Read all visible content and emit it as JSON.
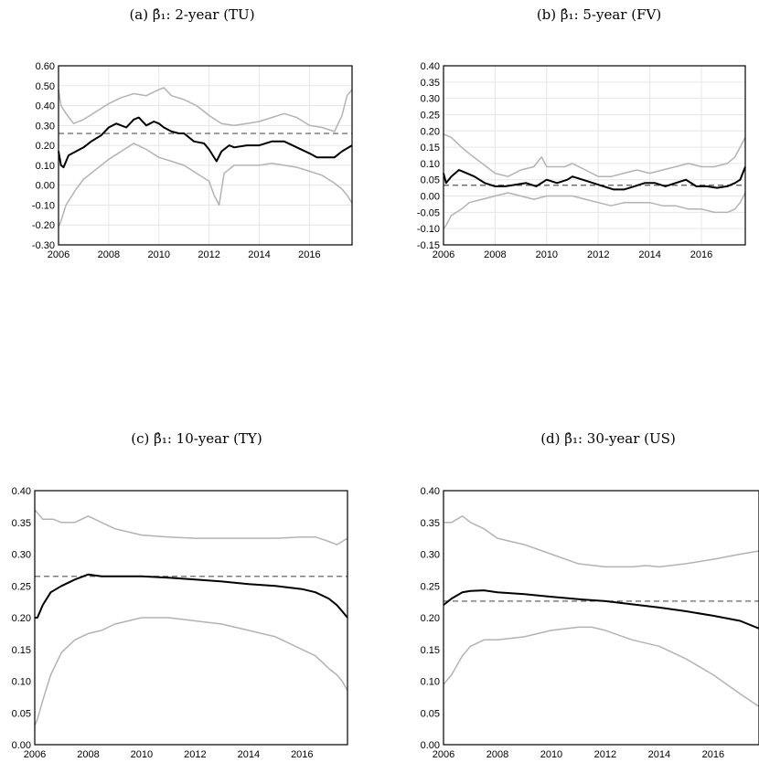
{
  "chart_data": [
    {
      "type": "line",
      "title": "(a) β̂₁: 2-year (TU)",
      "xlabel": "",
      "ylabel": "",
      "xlim": [
        2006,
        2017.7
      ],
      "ylim": [
        -0.3,
        0.6
      ],
      "xticks": [
        "2006",
        "2008",
        "2010",
        "2012",
        "2014",
        "2016"
      ],
      "yticks": [
        "-0.30",
        "-0.20",
        "-0.10",
        "0.00",
        "0.10",
        "0.20",
        "0.30",
        "0.40",
        "0.50",
        "0.60"
      ],
      "grid": true,
      "reference_line": 0.26,
      "series": [
        {
          "role": "upper",
          "color": "#b3b3b3",
          "x": [
            2006,
            2006.1,
            2006.3,
            2006.6,
            2007,
            2007.5,
            2008,
            2008.5,
            2009,
            2009.5,
            2010,
            2010.2,
            2010.5,
            2011,
            2011.5,
            2012,
            2012.5,
            2013,
            2013.5,
            2014,
            2014.5,
            2015,
            2015.5,
            2016,
            2016.5,
            2017,
            2017.3,
            2017.5,
            2017.7
          ],
          "y": [
            0.48,
            0.4,
            0.36,
            0.31,
            0.33,
            0.37,
            0.41,
            0.44,
            0.46,
            0.45,
            0.48,
            0.49,
            0.45,
            0.43,
            0.4,
            0.35,
            0.31,
            0.3,
            0.31,
            0.32,
            0.34,
            0.36,
            0.34,
            0.3,
            0.29,
            0.27,
            0.35,
            0.45,
            0.48
          ]
        },
        {
          "role": "estimate",
          "color": "#000000",
          "x": [
            2006,
            2006.1,
            2006.2,
            2006.4,
            2006.7,
            2007,
            2007.3,
            2007.7,
            2008,
            2008.3,
            2008.7,
            2009,
            2009.2,
            2009.5,
            2009.8,
            2010,
            2010.2,
            2010.5,
            2010.8,
            2011,
            2011.4,
            2011.8,
            2012,
            2012.3,
            2012.5,
            2012.8,
            2013,
            2013.5,
            2014,
            2014.5,
            2015,
            2015.5,
            2016,
            2016.3,
            2016.7,
            2017,
            2017.3,
            2017.7
          ],
          "y": [
            0.17,
            0.1,
            0.09,
            0.15,
            0.17,
            0.19,
            0.22,
            0.25,
            0.29,
            0.31,
            0.29,
            0.33,
            0.34,
            0.3,
            0.32,
            0.31,
            0.29,
            0.27,
            0.26,
            0.26,
            0.22,
            0.21,
            0.18,
            0.12,
            0.17,
            0.2,
            0.19,
            0.2,
            0.2,
            0.22,
            0.22,
            0.19,
            0.16,
            0.14,
            0.14,
            0.14,
            0.17,
            0.2
          ]
        },
        {
          "role": "lower",
          "color": "#b3b3b3",
          "x": [
            2006,
            2006.1,
            2006.3,
            2006.7,
            2007,
            2007.5,
            2008,
            2008.5,
            2009,
            2009.5,
            2010,
            2010.5,
            2011,
            2011.5,
            2012,
            2012.2,
            2012.4,
            2012.6,
            2012.8,
            2013,
            2013.5,
            2014,
            2014.5,
            2015,
            2015.5,
            2016,
            2016.5,
            2017,
            2017.3,
            2017.5,
            2017.7
          ],
          "y": [
            -0.21,
            -0.18,
            -0.1,
            -0.02,
            0.03,
            0.08,
            0.13,
            0.17,
            0.21,
            0.18,
            0.14,
            0.12,
            0.1,
            0.06,
            0.02,
            -0.05,
            -0.1,
            0.06,
            0.08,
            0.1,
            0.1,
            0.1,
            0.11,
            0.1,
            0.09,
            0.07,
            0.05,
            0.01,
            -0.02,
            -0.05,
            -0.09
          ]
        }
      ]
    },
    {
      "type": "line",
      "title": "(b) β̂₁: 5-year (FV)",
      "xlabel": "",
      "ylabel": "",
      "xlim": [
        2006,
        2017.7
      ],
      "ylim": [
        -0.15,
        0.4
      ],
      "xticks": [
        "2006",
        "2008",
        "2010",
        "2012",
        "2014",
        "2016"
      ],
      "yticks": [
        "-0.15",
        "-0.10",
        "-0.05",
        "0.00",
        "0.05",
        "0.10",
        "0.15",
        "0.20",
        "0.25",
        "0.30",
        "0.35",
        "0.40"
      ],
      "grid": true,
      "reference_line": 0.033,
      "series": [
        {
          "role": "upper",
          "color": "#b3b3b3",
          "x": [
            2006,
            2006.3,
            2006.7,
            2007,
            2007.5,
            2008,
            2008.5,
            2009,
            2009.5,
            2009.8,
            2010,
            2010.3,
            2010.7,
            2011,
            2011.5,
            2012,
            2012.5,
            2013,
            2013.5,
            2014,
            2014.5,
            2015,
            2015.5,
            2016,
            2016.5,
            2017,
            2017.3,
            2017.5,
            2017.7
          ],
          "y": [
            0.19,
            0.18,
            0.15,
            0.13,
            0.1,
            0.07,
            0.06,
            0.08,
            0.09,
            0.12,
            0.09,
            0.09,
            0.09,
            0.1,
            0.08,
            0.06,
            0.06,
            0.07,
            0.08,
            0.07,
            0.08,
            0.09,
            0.1,
            0.09,
            0.09,
            0.1,
            0.12,
            0.15,
            0.18
          ]
        },
        {
          "role": "estimate",
          "color": "#000000",
          "x": [
            2006,
            2006.1,
            2006.3,
            2006.6,
            2006.9,
            2007.2,
            2007.6,
            2008,
            2008.4,
            2008.8,
            2009.2,
            2009.6,
            2010,
            2010.4,
            2010.8,
            2011,
            2011.4,
            2011.8,
            2012.2,
            2012.6,
            2013,
            2013.4,
            2013.8,
            2014.2,
            2014.6,
            2015,
            2015.4,
            2015.8,
            2016.2,
            2016.6,
            2017,
            2017.3,
            2017.5,
            2017.7
          ],
          "y": [
            0.07,
            0.04,
            0.06,
            0.08,
            0.07,
            0.06,
            0.04,
            0.03,
            0.03,
            0.035,
            0.04,
            0.03,
            0.05,
            0.04,
            0.05,
            0.06,
            0.05,
            0.04,
            0.03,
            0.02,
            0.02,
            0.03,
            0.04,
            0.04,
            0.03,
            0.04,
            0.05,
            0.03,
            0.03,
            0.025,
            0.03,
            0.04,
            0.05,
            0.09
          ]
        },
        {
          "role": "lower",
          "color": "#b3b3b3",
          "x": [
            2006,
            2006.1,
            2006.3,
            2006.7,
            2007,
            2007.5,
            2008,
            2008.5,
            2009,
            2009.5,
            2010,
            2010.5,
            2011,
            2011.5,
            2012,
            2012.5,
            2013,
            2013.5,
            2014,
            2014.5,
            2015,
            2015.5,
            2016,
            2016.5,
            2017,
            2017.3,
            2017.5,
            2017.7
          ],
          "y": [
            -0.1,
            -0.09,
            -0.06,
            -0.04,
            -0.02,
            -0.01,
            0.0,
            0.01,
            0.0,
            -0.01,
            0.0,
            0.0,
            0.0,
            -0.01,
            -0.02,
            -0.03,
            -0.02,
            -0.02,
            -0.02,
            -0.03,
            -0.03,
            -0.04,
            -0.04,
            -0.05,
            -0.05,
            -0.04,
            -0.02,
            0.01
          ]
        }
      ]
    },
    {
      "type": "line",
      "title": "(c) β̂₁: 10-year (TY)",
      "xlabel": "",
      "ylabel": "",
      "xlim": [
        2006,
        2017.7
      ],
      "ylim": [
        0.0,
        0.4
      ],
      "xticks": [
        "2006",
        "2008",
        "2010",
        "2012",
        "2014",
        "2016"
      ],
      "yticks": [
        "0.00",
        "0.05",
        "0.10",
        "0.15",
        "0.20",
        "0.25",
        "0.30",
        "0.35",
        "0.40"
      ],
      "grid": false,
      "reference_line": 0.265,
      "series": [
        {
          "role": "upper",
          "color": "#b3b3b3",
          "x": [
            2006,
            2006.3,
            2006.7,
            2007,
            2007.5,
            2008,
            2008.5,
            2009,
            2010,
            2011,
            2012,
            2013,
            2014,
            2015,
            2016,
            2016.5,
            2017,
            2017.3,
            2017.7
          ],
          "y": [
            0.37,
            0.355,
            0.355,
            0.35,
            0.35,
            0.36,
            0.35,
            0.34,
            0.33,
            0.327,
            0.325,
            0.325,
            0.325,
            0.325,
            0.327,
            0.327,
            0.32,
            0.315,
            0.325
          ]
        },
        {
          "role": "estimate",
          "color": "#000000",
          "x": [
            2006,
            2006.1,
            2006.3,
            2006.6,
            2007,
            2007.5,
            2008,
            2008.5,
            2009,
            2010,
            2011,
            2012,
            2013,
            2014,
            2015,
            2016,
            2016.5,
            2017,
            2017.3,
            2017.5,
            2017.7
          ],
          "y": [
            0.2,
            0.2,
            0.22,
            0.24,
            0.25,
            0.26,
            0.268,
            0.265,
            0.265,
            0.265,
            0.263,
            0.26,
            0.257,
            0.253,
            0.25,
            0.245,
            0.24,
            0.23,
            0.22,
            0.21,
            0.2
          ]
        },
        {
          "role": "lower",
          "color": "#b3b3b3",
          "x": [
            2006,
            2006.1,
            2006.3,
            2006.6,
            2007,
            2007.5,
            2008,
            2008.5,
            2009,
            2010,
            2011,
            2012,
            2013,
            2014,
            2015,
            2015.5,
            2016,
            2016.5,
            2017,
            2017.3,
            2017.5,
            2017.7
          ],
          "y": [
            0.03,
            0.04,
            0.07,
            0.11,
            0.145,
            0.165,
            0.175,
            0.18,
            0.19,
            0.2,
            0.2,
            0.195,
            0.19,
            0.18,
            0.17,
            0.16,
            0.15,
            0.14,
            0.12,
            0.11,
            0.1,
            0.085
          ]
        }
      ]
    },
    {
      "type": "line",
      "title": "(d) β̂₁: 30-year (US)",
      "xlabel": "",
      "ylabel": "",
      "xlim": [
        2006,
        2017.7
      ],
      "ylim": [
        0.0,
        0.4
      ],
      "xticks": [
        "2006",
        "2008",
        "2010",
        "2012",
        "2014",
        "2016"
      ],
      "yticks": [
        "0.00",
        "0.05",
        "0.10",
        "0.15",
        "0.20",
        "0.25",
        "0.30",
        "0.35",
        "0.40"
      ],
      "grid": false,
      "reference_line": 0.226,
      "series": [
        {
          "role": "upper",
          "color": "#b3b3b3",
          "x": [
            2006,
            2006.3,
            2006.7,
            2007,
            2007.5,
            2008,
            2009,
            2010,
            2011,
            2012,
            2013,
            2013.5,
            2014,
            2015,
            2016,
            2017,
            2017.7
          ],
          "y": [
            0.35,
            0.35,
            0.36,
            0.35,
            0.34,
            0.325,
            0.315,
            0.3,
            0.285,
            0.28,
            0.28,
            0.282,
            0.28,
            0.285,
            0.292,
            0.3,
            0.305
          ]
        },
        {
          "role": "estimate",
          "color": "#000000",
          "x": [
            2006,
            2006.3,
            2006.7,
            2007,
            2007.5,
            2008,
            2009,
            2010,
            2011,
            2012,
            2013,
            2014,
            2015,
            2016,
            2017,
            2017.7
          ],
          "y": [
            0.22,
            0.23,
            0.24,
            0.242,
            0.243,
            0.24,
            0.237,
            0.233,
            0.229,
            0.226,
            0.221,
            0.216,
            0.21,
            0.203,
            0.195,
            0.183
          ]
        },
        {
          "role": "lower",
          "color": "#b3b3b3",
          "x": [
            2006,
            2006.3,
            2006.7,
            2007,
            2007.5,
            2008,
            2009,
            2010,
            2011,
            2011.5,
            2012,
            2013,
            2014,
            2015,
            2016,
            2017,
            2017.7
          ],
          "y": [
            0.095,
            0.11,
            0.14,
            0.155,
            0.165,
            0.165,
            0.17,
            0.18,
            0.185,
            0.185,
            0.18,
            0.165,
            0.155,
            0.135,
            0.11,
            0.08,
            0.06
          ]
        }
      ]
    }
  ]
}
